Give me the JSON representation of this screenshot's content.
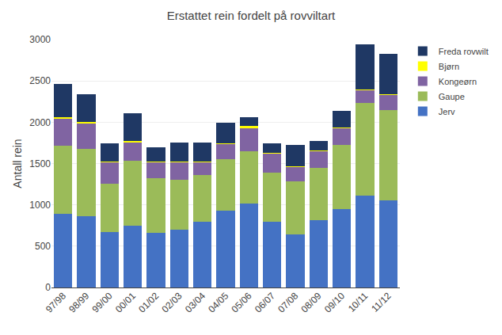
{
  "chart_data": {
    "type": "bar",
    "title": "Erstattet rein fordelt på rovviltart",
    "ylabel": "Antall rein",
    "categories": [
      "97/98",
      "98/99",
      "99/00",
      "00/01",
      "01/02",
      "02/03",
      "03/04",
      "04/05",
      "05/06",
      "06/07",
      "07/08",
      "08/09",
      "09/10",
      "10/11",
      "11/12"
    ],
    "series": [
      {
        "name": "Jerv",
        "color": "#4472C4",
        "values": [
          890,
          860,
          670,
          750,
          660,
          700,
          800,
          930,
          1020,
          800,
          640,
          810,
          950,
          1110,
          1050
        ]
      },
      {
        "name": "Gaupe",
        "color": "#9BBB59",
        "values": [
          830,
          820,
          590,
          780,
          660,
          600,
          560,
          620,
          630,
          590,
          640,
          640,
          780,
          1120,
          1100
        ]
      },
      {
        "name": "Kongeørn",
        "color": "#8064A2",
        "values": [
          330,
          310,
          260,
          230,
          200,
          220,
          160,
          190,
          280,
          230,
          180,
          200,
          200,
          160,
          180
        ]
      },
      {
        "name": "Bjørn",
        "color": "#FFFF00",
        "values": [
          10,
          10,
          5,
          10,
          5,
          5,
          5,
          5,
          30,
          5,
          5,
          5,
          5,
          10,
          10
        ]
      },
      {
        "name": "Freda rovwilt",
        "color": "#1F3864",
        "values": [
          400,
          340,
          220,
          340,
          170,
          230,
          230,
          250,
          100,
          120,
          260,
          120,
          200,
          540,
          490
        ]
      }
    ],
    "stacked": true,
    "ylim": [
      0,
      3000
    ],
    "yticks": [
      0,
      500,
      1000,
      1500,
      2000,
      2500,
      3000
    ],
    "grid": true,
    "legend": "upper right"
  }
}
